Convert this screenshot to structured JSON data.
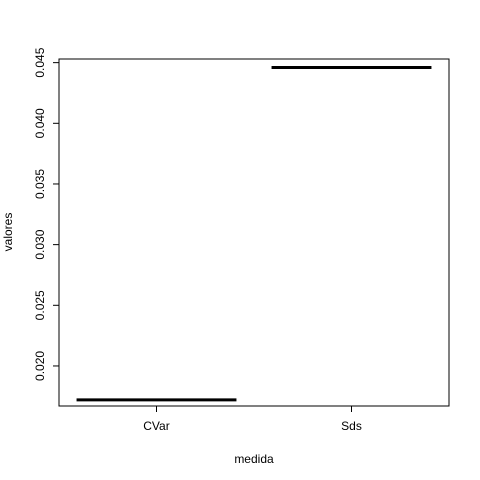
{
  "chart_data": {
    "type": "bar",
    "subtype": "level-lines",
    "categories": [
      "CVar",
      "Sds"
    ],
    "values": [
      0.0172,
      0.0446
    ],
    "title": "",
    "xlabel": "medida",
    "ylabel": "valores",
    "ylim": [
      0.0167,
      0.0453
    ],
    "yticks": [
      0.02,
      0.025,
      0.03,
      0.035,
      0.04,
      0.045
    ],
    "ytick_labels": [
      "0.020",
      "0.025",
      "0.030",
      "0.035",
      "0.040",
      "0.045"
    ],
    "grid": false,
    "legend": "none",
    "colors": {
      "line": "#000000",
      "axis": "#000000",
      "background": "#ffffff"
    }
  }
}
